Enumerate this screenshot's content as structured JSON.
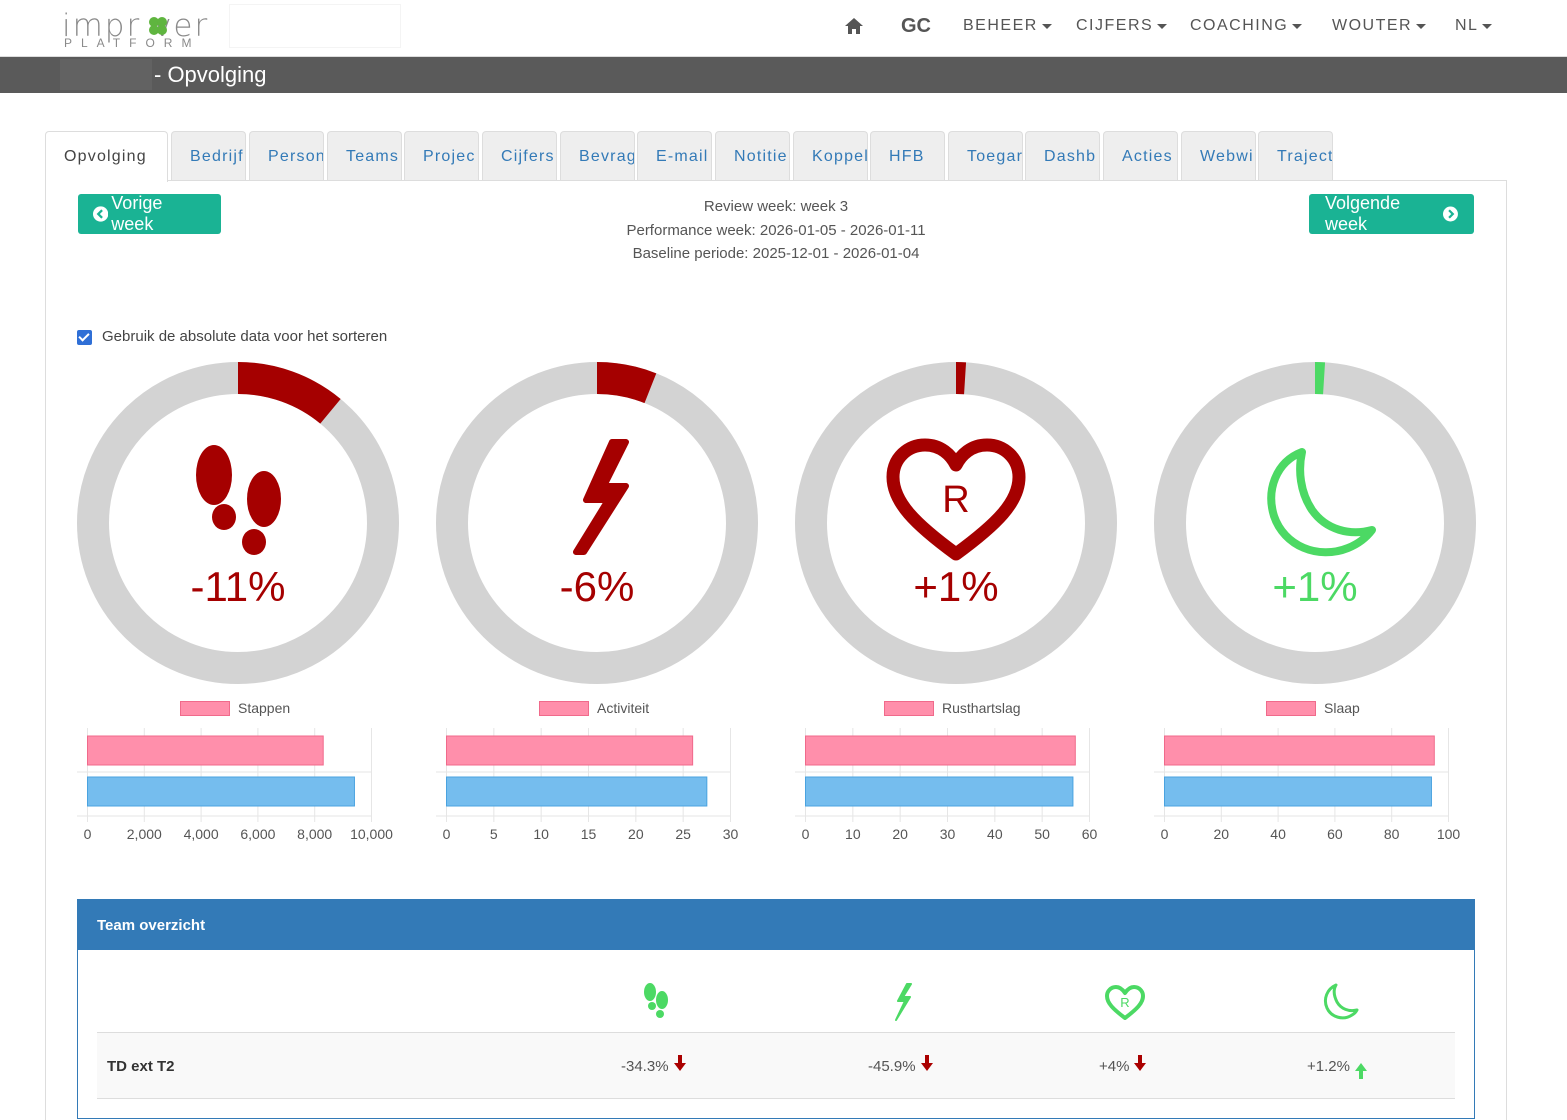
{
  "logo": {
    "word": "impr ver",
    "sub": "PLATFORM"
  },
  "nav": {
    "home_icon": "home-icon",
    "gc": "GC",
    "beheer": "BEHEER",
    "cijfers": "CIJFERS",
    "coaching": "COACHING",
    "user": "WOUTER",
    "lang": "NL"
  },
  "header": {
    "title": "- Opvolging"
  },
  "tabs": [
    "Opvolging",
    "Bedrijf",
    "Person",
    "Teams",
    "Projec",
    "Cijfers",
    "Bevrag",
    "E-mail",
    "Notitie",
    "Koppel",
    "HFB",
    "Toegar",
    "Dashb",
    "Acties",
    "Webwi",
    "Traject"
  ],
  "buttons": {
    "prev": "Vorige week",
    "next": "Volgende week"
  },
  "review": {
    "line1": "Review week: week 3",
    "line2": "Performance week: 2026-01-05 - 2026-01-11",
    "line3": "Baseline periode: 2025-12-01 - 2026-01-04"
  },
  "sort_checkbox": {
    "label": "Gebruik de absolute data voor het sorteren",
    "checked": true
  },
  "colors": {
    "red": "#a50000",
    "green": "#4cd964",
    "gray": "#d3d3d3",
    "pink": "#ff8fab",
    "blue": "#75bdee",
    "teal": "#1ab394",
    "panel_blue": "#337ab7"
  },
  "gauges": [
    {
      "icon": "footsteps-icon",
      "pct": "-11%",
      "fraction": 0.11,
      "color": "red"
    },
    {
      "icon": "lightning-icon",
      "pct": "-6%",
      "fraction": 0.06,
      "color": "red"
    },
    {
      "icon": "heart-r-icon",
      "pct": "+1%",
      "fraction": 0.01,
      "color": "red",
      "icon_text": "R"
    },
    {
      "icon": "moon-icon",
      "pct": "+1%",
      "fraction": 0.01,
      "color": "green"
    }
  ],
  "chart_data": [
    {
      "type": "bar",
      "orientation": "horizontal",
      "legend": "Stappen",
      "values": [
        8300,
        9400
      ],
      "xlim": [
        0,
        10000
      ],
      "ticks": [
        "0",
        "2,000",
        "4,000",
        "6,000",
        "8,000",
        "10,000"
      ]
    },
    {
      "type": "bar",
      "orientation": "horizontal",
      "legend": "Activiteit",
      "values": [
        26,
        27.5
      ],
      "xlim": [
        0,
        30
      ],
      "ticks": [
        "0",
        "5",
        "10",
        "15",
        "20",
        "25",
        "30"
      ]
    },
    {
      "type": "bar",
      "orientation": "horizontal",
      "legend": "Rusthartslag",
      "values": [
        57,
        56.5
      ],
      "xlim": [
        0,
        60
      ],
      "ticks": [
        "0",
        "10",
        "20",
        "30",
        "40",
        "50",
        "60"
      ]
    },
    {
      "type": "bar",
      "orientation": "horizontal",
      "legend": "Slaap",
      "values": [
        95,
        94
      ],
      "xlim": [
        0,
        100
      ],
      "ticks": [
        "0",
        "20",
        "40",
        "60",
        "80",
        "100"
      ]
    }
  ],
  "team": {
    "title": "Team overzicht",
    "icons": [
      "footsteps-icon",
      "lightning-icon",
      "heart-r-icon",
      "moon-icon"
    ],
    "rows": [
      {
        "name": "TD ext T2",
        "values": [
          "-34.3%",
          "-45.9%",
          "+4%",
          "+1.2%"
        ],
        "trends": [
          "down",
          "down",
          "down",
          "up"
        ]
      }
    ]
  }
}
